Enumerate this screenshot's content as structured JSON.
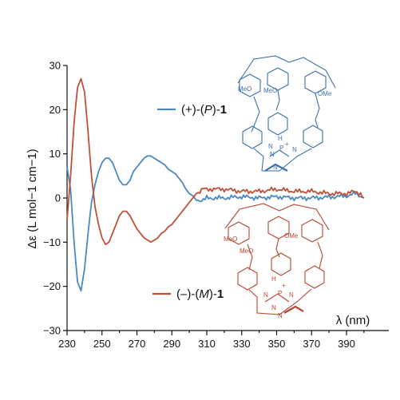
{
  "chart_data": {
    "type": "line",
    "xlabel": "λ (nm)",
    "ylabel": "Δε (L mol−1 cm−1)",
    "xlim": [
      230,
      400
    ],
    "ylim": [
      -30,
      30
    ],
    "x_ticks": [
      "230",
      "250",
      "270",
      "290",
      "310",
      "330",
      "350",
      "370",
      "390"
    ],
    "y_ticks": [
      "30",
      "20",
      "10",
      "0",
      "−10",
      "−20",
      "−30"
    ],
    "grid": false,
    "series": [
      {
        "name": "(+)-(P)-1",
        "legend": {
          "prefix": "(+)-(",
          "italic": "P",
          "suffix": ")-",
          "bold": "1"
        },
        "color": "#4a88c2",
        "x": [
          230,
          232,
          234,
          236,
          238,
          240,
          242,
          244,
          246,
          248,
          250,
          252,
          254,
          256,
          258,
          260,
          262,
          264,
          266,
          268,
          270,
          272,
          274,
          276,
          278,
          280,
          282,
          284,
          286,
          288,
          290,
          292,
          294,
          296,
          298,
          300,
          302,
          304,
          306,
          308,
          310,
          320,
          330,
          340,
          350,
          360,
          370,
          380,
          390,
          395,
          398,
          400
        ],
        "y": [
          7,
          2,
          -10,
          -19,
          -21,
          -16,
          -8,
          -1,
          3,
          6,
          8,
          9,
          9,
          8,
          6,
          4,
          3,
          3,
          4,
          6,
          7,
          8,
          9,
          9.5,
          9.5,
          9,
          8.5,
          8,
          7.5,
          6.5,
          6,
          5.5,
          4.5,
          3.5,
          2,
          1,
          0.5,
          -0.5,
          -0.5,
          -0.5,
          0,
          0,
          0.3,
          0,
          0.3,
          0,
          0,
          0.2,
          0.5,
          1,
          0.5,
          0
        ]
      },
      {
        "name": "(−)-(M)-1",
        "legend": {
          "prefix": "(–)-(",
          "italic": "M",
          "suffix": ")-",
          "bold": "1"
        },
        "color": "#c0503a",
        "x": [
          230,
          232,
          234,
          236,
          238,
          240,
          242,
          244,
          246,
          248,
          250,
          252,
          254,
          256,
          258,
          260,
          262,
          264,
          266,
          268,
          270,
          272,
          274,
          276,
          278,
          280,
          282,
          284,
          286,
          288,
          290,
          292,
          294,
          296,
          298,
          300,
          302,
          304,
          306,
          308,
          310,
          320,
          330,
          340,
          350,
          360,
          370,
          380,
          390,
          395,
          398,
          400
        ],
        "y": [
          -5,
          5,
          17,
          25,
          27,
          24,
          15,
          5,
          -2,
          -6,
          -9,
          -10.5,
          -10,
          -8,
          -6,
          -4,
          -3,
          -3,
          -4,
          -5.5,
          -7,
          -8,
          -9,
          -9.5,
          -10,
          -9.5,
          -9,
          -8,
          -7.5,
          -6.5,
          -6,
          -5,
          -4,
          -3,
          -2,
          -1,
          0,
          1,
          1.5,
          2,
          2,
          2,
          1.5,
          1.5,
          2,
          1.5,
          1.5,
          1,
          1,
          1.5,
          1,
          0
        ]
      }
    ]
  },
  "structures": {
    "top": {
      "labels": [
        "MeO",
        "MeO",
        "OMe",
        "N",
        "H",
        "P",
        "+",
        "N",
        "N",
        "N"
      ],
      "color": "#3a6fae"
    },
    "bottom": {
      "labels": [
        "MeO",
        "OMe",
        "MeO",
        "H",
        "P",
        "+",
        "N",
        "N",
        "N",
        "N"
      ],
      "color": "#b8452e"
    }
  }
}
